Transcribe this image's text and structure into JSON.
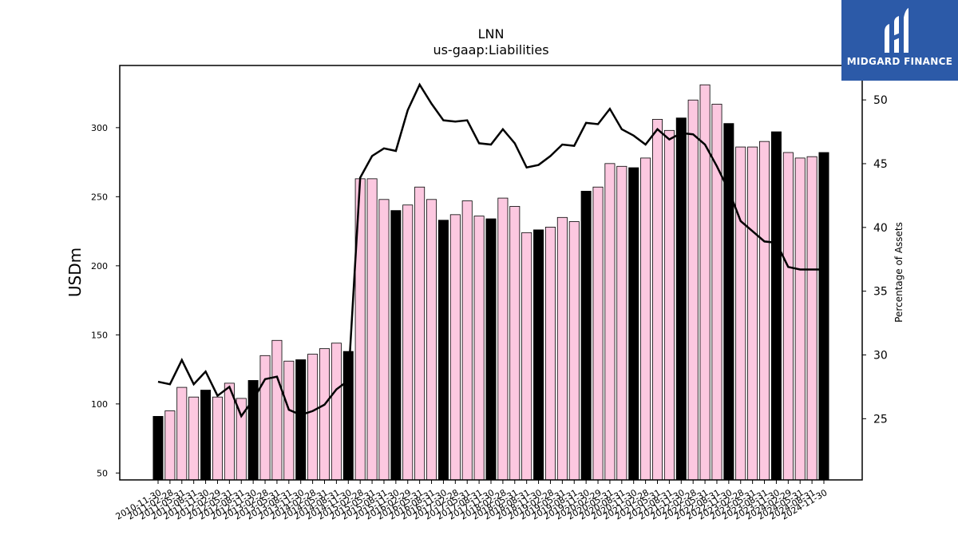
{
  "chart_data": {
    "type": "bar",
    "title": "LNN",
    "subtitle": "us-gaap:Liabilities",
    "ylabel": "USDm",
    "y2label": "Percentage of Assets",
    "ylim": [
      45,
      345
    ],
    "y2lim": [
      20.2,
      52.7
    ],
    "yticks": [
      50,
      100,
      150,
      200,
      250,
      300
    ],
    "y2ticks": [
      25,
      30,
      35,
      40,
      45,
      50
    ],
    "categories": [
      "2010-11-30",
      "2011-02-28",
      "2011-05-31",
      "2011-08-31",
      "2011-11-30",
      "2012-02-29",
      "2012-05-31",
      "2012-08-31",
      "2012-11-30",
      "2013-02-28",
      "2013-05-31",
      "2013-08-31",
      "2013-11-30",
      "2014-02-28",
      "2014-05-31",
      "2014-08-31",
      "2014-11-30",
      "2015-02-28",
      "2015-05-31",
      "2015-08-31",
      "2015-11-30",
      "2016-02-29",
      "2016-05-31",
      "2016-08-31",
      "2016-11-30",
      "2017-02-28",
      "2017-05-31",
      "2017-08-31",
      "2017-11-30",
      "2018-02-28",
      "2018-05-31",
      "2018-08-31",
      "2018-11-30",
      "2019-02-28",
      "2019-05-31",
      "2019-08-31",
      "2019-11-30",
      "2020-02-29",
      "2020-05-31",
      "2020-08-31",
      "2020-11-30",
      "2021-02-28",
      "2021-05-31",
      "2021-08-31",
      "2021-11-30",
      "2022-02-28",
      "2022-05-31",
      "2022-08-31",
      "2022-11-30",
      "2023-02-28",
      "2023-05-31",
      "2023-08-31",
      "2023-11-30",
      "2024-02-29",
      "2024-05-31",
      "2024-08-31",
      "2024-11-30"
    ],
    "series": [
      {
        "type": "bar",
        "axis": "left",
        "values": [
          91,
          95,
          112,
          105,
          110,
          105,
          115,
          104,
          117,
          135,
          146,
          131,
          132,
          136,
          140,
          144,
          138,
          263,
          263,
          248,
          240,
          244,
          257,
          248,
          233,
          237,
          247,
          236,
          234,
          249,
          243,
          224,
          226,
          228,
          235,
          232,
          254,
          257,
          274,
          272,
          271,
          278,
          306,
          298,
          307,
          320,
          331,
          317,
          303,
          286,
          286,
          290,
          297,
          282,
          278,
          279,
          282
        ]
      },
      {
        "type": "line",
        "axis": "right",
        "values": [
          27.9,
          27.7,
          29.6,
          27.7,
          28.7,
          26.8,
          27.5,
          25.2,
          26.5,
          28.1,
          28.3,
          25.7,
          25.3,
          25.6,
          26.1,
          27.3,
          28.0,
          43.9,
          45.6,
          46.2,
          46.0,
          49.2,
          51.2,
          49.7,
          48.4,
          48.3,
          48.4,
          46.6,
          46.5,
          47.7,
          46.6,
          44.7,
          44.9,
          45.6,
          46.5,
          46.4,
          48.2,
          48.1,
          49.3,
          47.7,
          47.2,
          46.5,
          47.7,
          46.9,
          47.4,
          47.3,
          46.5,
          44.8,
          42.9,
          40.5,
          39.7,
          38.9,
          38.8,
          36.9,
          36.7,
          36.7,
          36.7
        ]
      }
    ],
    "highlight_every": 4,
    "colors": {
      "highlight_bar": "#000000",
      "bar": "#fcc8e0",
      "bar_edge": "#000000",
      "line": "#000000"
    },
    "grid": false,
    "legend": "none"
  },
  "logo": {
    "text": "MIDGARD FINANCE",
    "color": "#2c5aa8"
  }
}
